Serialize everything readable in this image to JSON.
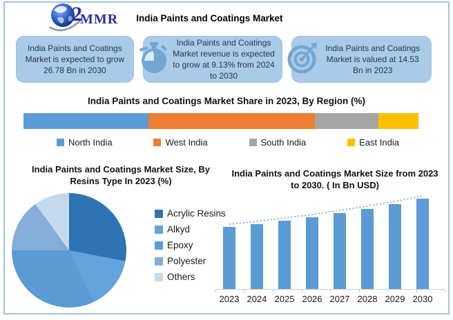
{
  "header": {
    "logo_mark": "2",
    "logo_text": "MMR",
    "title": "India Paints and Coatings Market"
  },
  "highlight_boxes": [
    {
      "icon": "none",
      "text": "India Paints and Coatings Market is expected to grow 26.78 Bn in 2030"
    },
    {
      "icon": "stopwatch-icon",
      "text": "India Paints and Coatings Market revenue is expected to grow at 9.13% from 2024 to 2030"
    },
    {
      "icon": "target-icon",
      "text": "India Paints and Coatings Market is valued at 14.53 Bn in 2023"
    }
  ],
  "colors": {
    "frame_border": "#9dc3e6",
    "box_bg": "#a9cbe8",
    "icon_blue": "#72a7d3",
    "bar_blue": "#5b9bd5",
    "trendline": "#6f9fd0",
    "logo_navy": "#2b2ba6"
  },
  "chart_data": [
    {
      "type": "bar",
      "subtype": "horizontal-stacked",
      "title": "India Paints and Coatings Market Share in 2023, By Region (%)",
      "series": [
        {
          "name": "North India",
          "value": 31.6,
          "color": "#5b9bd5"
        },
        {
          "name": "West India",
          "value": 42.1,
          "color": "#ed7d31"
        },
        {
          "name": "South  India",
          "value": 16.1,
          "color": "#a5a5a5"
        },
        {
          "name": "East India",
          "value": 10.2,
          "color": "#ffc000"
        }
      ],
      "legend_position": "bottom",
      "unit": "%"
    },
    {
      "type": "pie",
      "title": "India Paints and Coatings Market Size, By Resins Type In 2023 (%)",
      "start_angle_deg": 0,
      "direction": "clockwise",
      "slices": [
        {
          "label": "Acrylic Resins",
          "value": 28,
          "color": "#2e74b5"
        },
        {
          "label": "Alkyd",
          "value": 15,
          "color": "#61a3dd"
        },
        {
          "label": "Epoxy",
          "value": 32,
          "color": "#5b9bd5"
        },
        {
          "label": "Polyester",
          "value": 15,
          "color": "#84add9"
        },
        {
          "label": "Others",
          "value": 10,
          "color": "#c5d9ee"
        }
      ],
      "legend_position": "right",
      "unit": "%"
    },
    {
      "type": "bar",
      "title": "India Paints and Coatings Market Size from 2023 to 2030. ( In Bn  USD)",
      "categories": [
        "2023",
        "2024",
        "2025",
        "2026",
        "2027",
        "2028",
        "2029",
        "2030"
      ],
      "values": [
        14.53,
        15.86,
        17.3,
        18.88,
        20.61,
        22.49,
        24.54,
        26.78
      ],
      "bar_color": "#5b9bd5",
      "trendline": true,
      "ylim": [
        -12,
        28
      ],
      "xlabel": "",
      "ylabel": "",
      "grid": false,
      "unit": "Bn USD"
    }
  ]
}
